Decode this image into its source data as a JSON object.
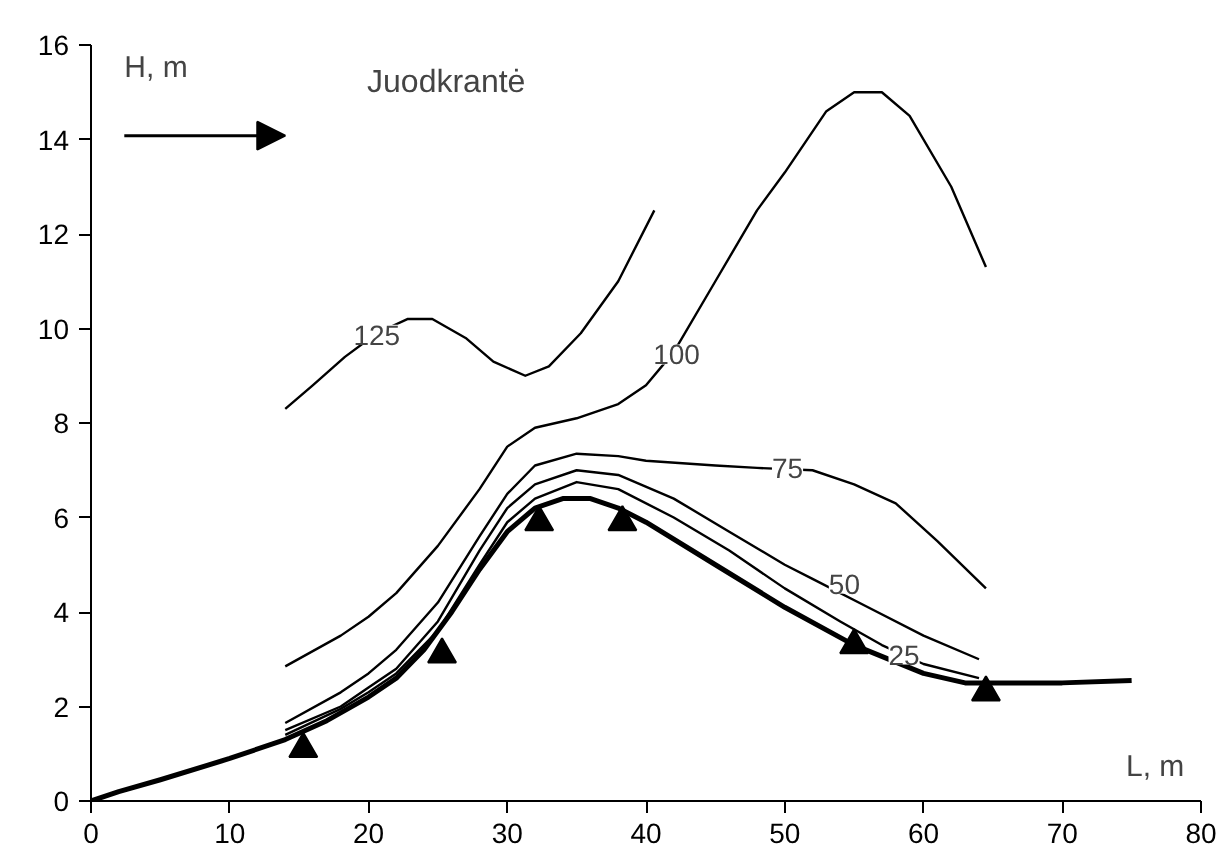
{
  "chart_data": {
    "type": "line",
    "title": "Juodkrantė",
    "xlabel": "L, m",
    "ylabel": "H, m",
    "xlim": [
      0,
      80
    ],
    "ylim": [
      0,
      16
    ],
    "xticks": [
      0,
      10,
      20,
      30,
      40,
      50,
      60,
      70,
      80
    ],
    "yticks": [
      0,
      2,
      4,
      6,
      8,
      10,
      12,
      14,
      16
    ],
    "grid": false,
    "marker": "none",
    "line_style": "solid",
    "annotations": [
      {
        "text": "25",
        "x": 58.6,
        "y": 3.1
      },
      {
        "text": "50",
        "x": 54.3,
        "y": 4.6
      },
      {
        "text": "75",
        "x": 50.2,
        "y": 7.05
      },
      {
        "text": "100",
        "x": 42.2,
        "y": 9.45
      },
      {
        "text": "125",
        "x": 20.6,
        "y": 9.87
      }
    ],
    "series": [
      {
        "x": [
          0,
          2,
          5,
          10,
          14,
          17,
          20,
          22,
          24,
          26,
          28,
          30,
          32,
          34,
          36,
          38,
          40,
          45,
          50,
          55,
          60,
          63,
          66,
          70,
          75
        ],
        "values": [
          0,
          0.2,
          0.45,
          0.9,
          1.3,
          1.7,
          2.2,
          2.6,
          3.2,
          4.0,
          4.9,
          5.7,
          6.2,
          6.4,
          6.4,
          6.2,
          5.9,
          5.0,
          4.1,
          3.3,
          2.7,
          2.5,
          2.5,
          2.5,
          2.55
        ],
        "color": "#000000"
      },
      {
        "x": [
          14,
          18,
          20,
          22,
          25,
          28,
          30,
          32,
          35,
          38,
          42,
          46,
          50,
          54,
          57,
          60,
          64
        ],
        "values": [
          1.4,
          1.95,
          2.3,
          2.7,
          3.6,
          5.0,
          5.9,
          6.4,
          6.75,
          6.6,
          6.0,
          5.3,
          4.5,
          3.8,
          3.3,
          2.9,
          2.6
        ],
        "color": "#000000"
      },
      {
        "x": [
          14,
          18,
          20,
          22,
          25,
          28,
          30,
          32,
          35,
          38,
          42,
          46,
          50,
          52,
          56,
          60,
          64
        ],
        "values": [
          1.5,
          2.0,
          2.4,
          2.8,
          3.8,
          5.3,
          6.2,
          6.7,
          7.0,
          6.9,
          6.4,
          5.7,
          5.0,
          4.7,
          4.1,
          3.5,
          3.0
        ],
        "color": "#000000"
      },
      {
        "x": [
          14,
          18,
          20,
          22,
          25,
          28,
          30,
          32,
          35,
          38,
          40,
          45,
          48,
          52,
          55,
          58,
          61,
          64.5
        ],
        "values": [
          1.65,
          2.3,
          2.7,
          3.2,
          4.2,
          5.6,
          6.5,
          7.1,
          7.35,
          7.3,
          7.2,
          7.1,
          7.05,
          7.0,
          6.7,
          6.3,
          5.5,
          4.5
        ],
        "color": "#000000"
      },
      {
        "x": [
          14,
          18,
          20,
          22,
          25,
          28,
          30,
          32,
          35,
          38,
          40,
          42,
          45,
          48,
          50,
          53,
          55,
          57,
          59,
          62,
          64.5
        ],
        "values": [
          2.85,
          3.5,
          3.9,
          4.4,
          5.4,
          6.6,
          7.5,
          7.9,
          8.1,
          8.4,
          8.8,
          9.5,
          11.0,
          12.5,
          13.3,
          14.6,
          15.0,
          15.0,
          14.5,
          13.0,
          11.3
        ],
        "color": "#000000"
      },
      {
        "x": [
          14,
          16,
          18.3,
          20.6,
          22.8,
          24.6,
          27,
          29,
          31.3,
          33,
          35.3,
          38,
          40.6
        ],
        "values": [
          8.3,
          8.8,
          9.4,
          9.9,
          10.2,
          10.2,
          9.8,
          9.3,
          9.0,
          9.2,
          9.9,
          11.0,
          12.5
        ],
        "color": "#000000"
      },
      {
        "type": "scatter",
        "marker": "triangle",
        "x": [
          15.3,
          25.3,
          32.3,
          38.3,
          55,
          64.5
        ],
        "values": [
          1.1,
          3.1,
          5.9,
          5.9,
          3.3,
          2.3
        ],
        "color": "#000000"
      }
    ]
  }
}
